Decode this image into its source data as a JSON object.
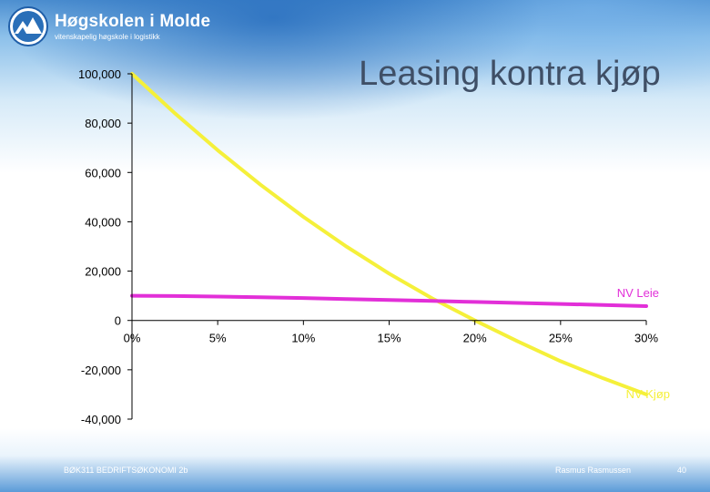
{
  "header": {
    "logo_name": "Høgskolen i Molde",
    "logo_tagline": "vitenskapelig høgskole i logistikk"
  },
  "slide": {
    "title": "Leasing kontra kjøp"
  },
  "footer": {
    "course": "BØK311 BEDRIFTSØKONOMI 2b",
    "author": "Rasmus Rasmussen",
    "page": "40"
  },
  "colors": {
    "nv_kjop": "#f5f03a",
    "nv_leie": "#e22fd8",
    "axis": "#000000"
  },
  "chart_data": {
    "type": "line",
    "title": "Leasing kontra kjøp",
    "xlabel": "",
    "ylabel": "",
    "xlim": [
      0,
      0.3
    ],
    "ylim": [
      -40000,
      100000
    ],
    "grid": false,
    "x_ticks": [
      {
        "value": 0,
        "label": "0%"
      },
      {
        "value": 0.05,
        "label": "5%"
      },
      {
        "value": 0.1,
        "label": "10%"
      },
      {
        "value": 0.15,
        "label": "15%"
      },
      {
        "value": 0.2,
        "label": "20%"
      },
      {
        "value": 0.25,
        "label": "25%"
      },
      {
        "value": 0.3,
        "label": "30%"
      }
    ],
    "y_ticks": [
      {
        "value": 100000,
        "label": "100,000"
      },
      {
        "value": 80000,
        "label": "80,000"
      },
      {
        "value": 60000,
        "label": "60,000"
      },
      {
        "value": 40000,
        "label": "40,000"
      },
      {
        "value": 20000,
        "label": "20,000"
      },
      {
        "value": 0,
        "label": "0"
      },
      {
        "value": -20000,
        "label": "-20,000"
      },
      {
        "value": -40000,
        "label": "-40,000"
      }
    ],
    "x": [
      0,
      0.025,
      0.05,
      0.075,
      0.1,
      0.125,
      0.15,
      0.175,
      0.2,
      0.225,
      0.25,
      0.275,
      0.3
    ],
    "series": [
      {
        "name": "NV Kjøp",
        "color": "#f5f03a",
        "values": [
          100000,
          84000,
          69000,
          55000,
          42000,
          30000,
          19000,
          9000,
          0,
          -8500,
          -16500,
          -23500,
          -30000
        ]
      },
      {
        "name": "NV Leie",
        "color": "#e22fd8",
        "values": [
          10000,
          9900,
          9700,
          9400,
          9100,
          8700,
          8300,
          7900,
          7500,
          7100,
          6700,
          6300,
          5800
        ]
      }
    ]
  }
}
